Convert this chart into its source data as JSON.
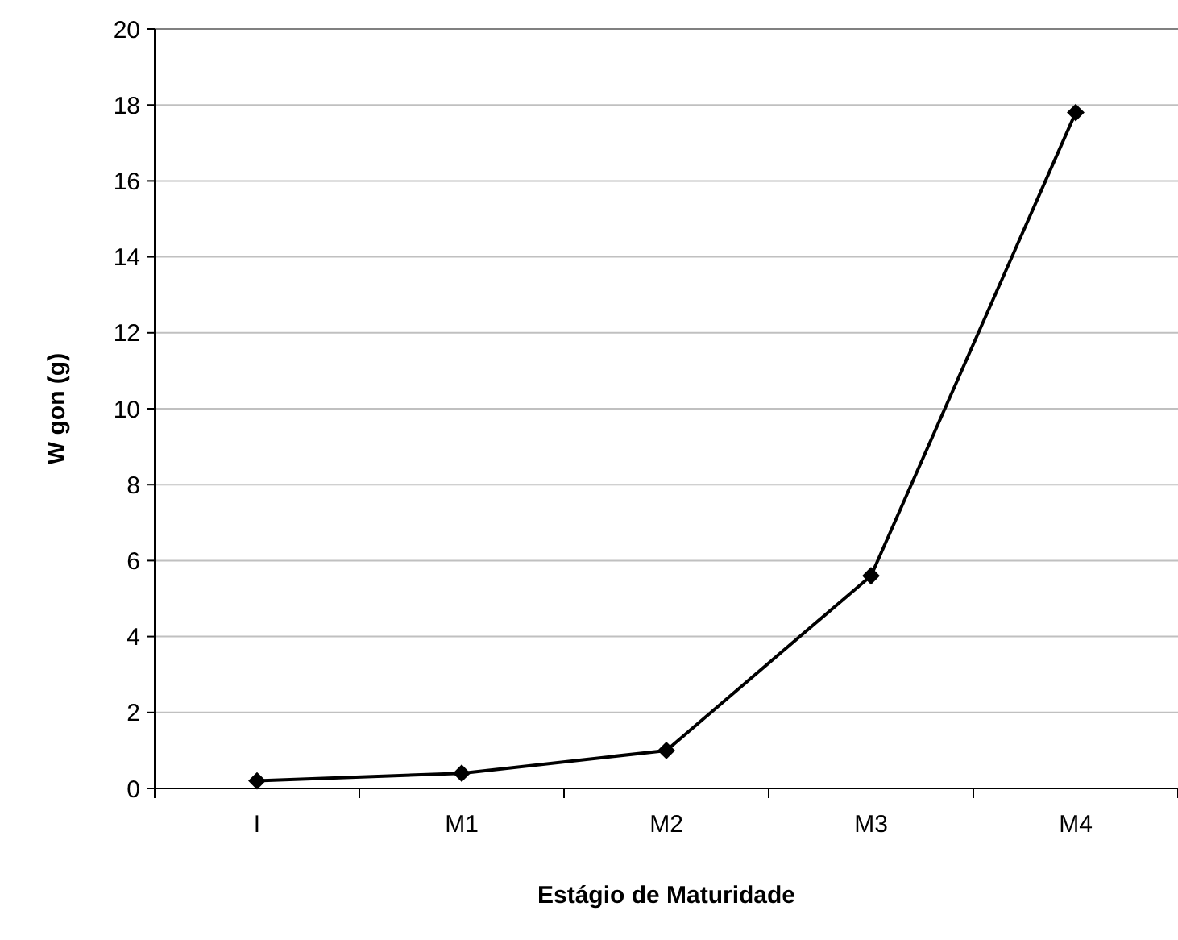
{
  "chart_data": {
    "type": "line",
    "xlabel": "Estágio de Maturidade",
    "ylabel": "W gon (g)",
    "categories": [
      "I",
      "M1",
      "M2",
      "M3",
      "M4"
    ],
    "series": [
      {
        "color": "#000000",
        "values": [
          0.2,
          0.4,
          1.0,
          5.6,
          17.8
        ]
      }
    ],
    "ylim": [
      0,
      20
    ],
    "yticks": [
      0,
      2,
      4,
      6,
      8,
      10,
      12,
      14,
      16,
      18,
      20
    ],
    "grid": "y",
    "marker": "diamond",
    "line_style": "solid"
  }
}
